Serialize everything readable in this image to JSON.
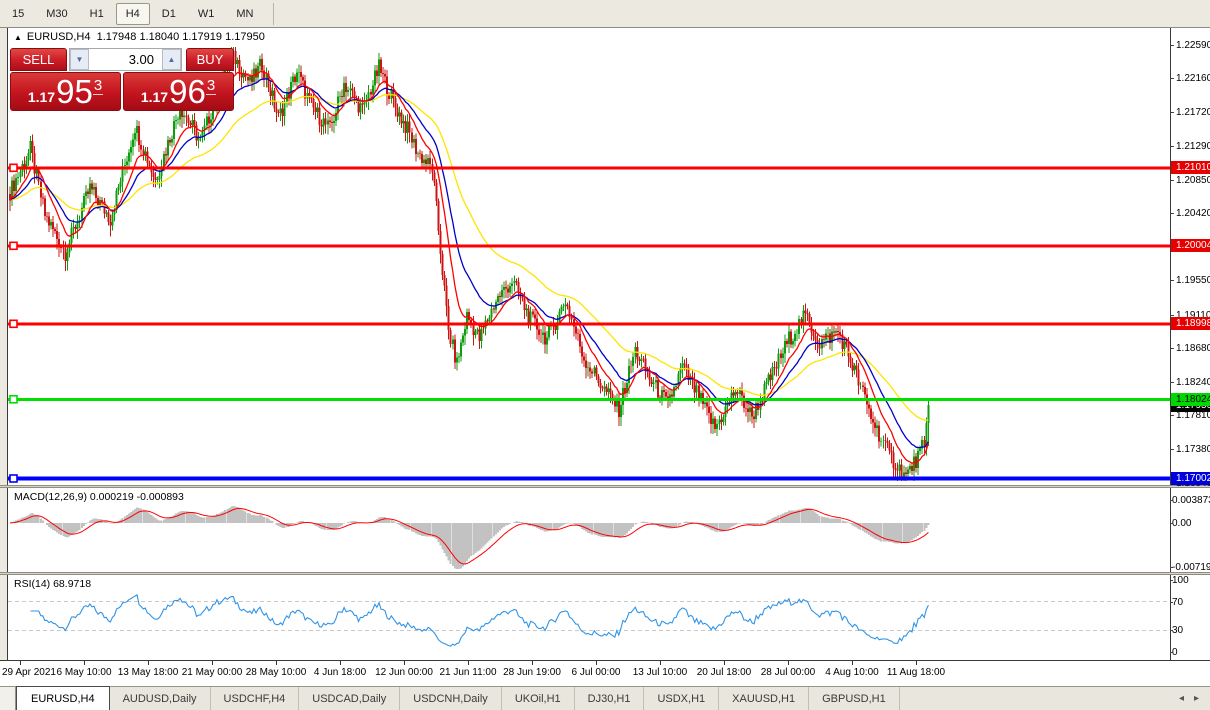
{
  "toolbar": {
    "timeframes": [
      {
        "label": "15",
        "active": false
      },
      {
        "label": "M30",
        "active": false
      },
      {
        "label": "H1",
        "active": false
      },
      {
        "label": "H4",
        "active": true
      },
      {
        "label": "D1",
        "active": false
      },
      {
        "label": "W1",
        "active": false
      },
      {
        "label": "MN",
        "active": false
      }
    ]
  },
  "chart": {
    "title": "EURUSD,H4",
    "ohlc_text": "1.17948 1.18040 1.17919 1.17950",
    "trade_panel": {
      "sell_label": "SELL",
      "buy_label": "BUY",
      "volume": "3.00",
      "down_arrow": "▼",
      "up_arrow": "▲",
      "sell_price_prefix": "1.17",
      "sell_price_big": "95",
      "sell_price_sup": "3",
      "buy_price_prefix": "1.17",
      "buy_price_big": "96",
      "buy_price_sup": "3"
    }
  },
  "chart_data": {
    "type": "candlestick",
    "symbol": "EURUSD",
    "timeframe": "H4",
    "ohlc": {
      "open": "1.17948",
      "high": "1.18040",
      "low": "1.17919",
      "close": "1.17950"
    },
    "candle_count": 449,
    "price_path": [
      [
        0,
        1.207
      ],
      [
        10,
        1.2125
      ],
      [
        17,
        1.204
      ],
      [
        27,
        1.1992
      ],
      [
        39,
        1.2075
      ],
      [
        49,
        1.2035
      ],
      [
        61,
        1.2155
      ],
      [
        71,
        1.2085
      ],
      [
        83,
        1.218
      ],
      [
        93,
        1.2135
      ],
      [
        108,
        1.225
      ],
      [
        117,
        1.221
      ],
      [
        123,
        1.2235
      ],
      [
        131,
        1.2165
      ],
      [
        140,
        1.2225
      ],
      [
        147,
        1.218
      ],
      [
        156,
        1.215
      ],
      [
        163,
        1.221
      ],
      [
        172,
        1.2175
      ],
      [
        180,
        1.223
      ],
      [
        188,
        1.218
      ],
      [
        194,
        1.215
      ],
      [
        199,
        1.212
      ],
      [
        206,
        1.21
      ],
      [
        214,
        1.189
      ],
      [
        218,
        1.1848
      ],
      [
        223,
        1.191
      ],
      [
        229,
        1.188
      ],
      [
        237,
        1.193
      ],
      [
        245,
        1.1955
      ],
      [
        254,
        1.1905
      ],
      [
        262,
        1.188
      ],
      [
        271,
        1.193
      ],
      [
        280,
        1.1855
      ],
      [
        290,
        1.1815
      ],
      [
        297,
        1.179
      ],
      [
        305,
        1.1865
      ],
      [
        313,
        1.1825
      ],
      [
        321,
        1.1795
      ],
      [
        328,
        1.1845
      ],
      [
        337,
        1.18
      ],
      [
        344,
        1.1765
      ],
      [
        354,
        1.1815
      ],
      [
        362,
        1.178
      ],
      [
        371,
        1.183
      ],
      [
        380,
        1.188
      ],
      [
        388,
        1.191
      ],
      [
        395,
        1.1875
      ],
      [
        404,
        1.189
      ],
      [
        412,
        1.184
      ],
      [
        420,
        1.178
      ],
      [
        429,
        1.173
      ],
      [
        437,
        1.1703
      ],
      [
        443,
        1.1728
      ],
      [
        446,
        1.1745
      ],
      [
        448,
        1.1795
      ]
    ],
    "candle_up_color": "#0f9d0f",
    "candle_down_color": "#cc1414",
    "price_axis_ticks": [
      "1.22590",
      "1.22160",
      "1.21720",
      "1.21290",
      "1.20850",
      "1.20420",
      "1.19550",
      "1.19110",
      "1.18680",
      "1.18240",
      "1.17810",
      "1.17380",
      "1.16940"
    ],
    "price_labels": [
      {
        "text": "1.21010",
        "bg": "#e60000",
        "fg": "#ffffff",
        "z": 3
      },
      {
        "text": "1.20004",
        "bg": "#e60000",
        "fg": "#ffffff",
        "z": 3
      },
      {
        "text": "1.18998",
        "bg": "#e60000",
        "fg": "#ffffff",
        "z": 3
      },
      {
        "text": "1.17950",
        "bg": "#000000",
        "fg": "#ffffff",
        "z": 4
      },
      {
        "text": "1.18024",
        "bg": "#00d800",
        "fg": "#000000",
        "z": 5
      },
      {
        "text": "1.17002",
        "bg": "#0000dd",
        "fg": "#ffffff",
        "z": 5
      }
    ],
    "h_lines": [
      {
        "value": 1.2101,
        "color": "#ff0000",
        "w": 3
      },
      {
        "value": 1.20004,
        "color": "#ff0000",
        "w": 3
      },
      {
        "value": 1.18998,
        "color": "#ff0000",
        "w": 3
      },
      {
        "value": 1.18024,
        "color": "#00e000",
        "w": 3
      },
      {
        "value": 1.17002,
        "color": "#0000ff",
        "w": 4
      }
    ],
    "ma_lines": [
      {
        "name": "fast",
        "color": "#ff0000",
        "period": 12
      },
      {
        "name": "medium",
        "color": "#0000c8",
        "period": 24
      },
      {
        "name": "slow",
        "color": "#ffe400",
        "period": 55
      }
    ],
    "time_axis_ticks": [
      "29 Apr 2021",
      "6 May 10:00",
      "13 May 18:00",
      "21 May 00:00",
      "28 May 10:00",
      "4 Jun 18:00",
      "12 Jun 00:00",
      "21 Jun 11:00",
      "28 Jun 19:00",
      "6 Jul 00:00",
      "13 Jul 10:00",
      "20 Jul 18:00",
      "28 Jul 00:00",
      "4 Aug 10:00",
      "11 Aug 18:00"
    ],
    "macd": {
      "label": "MACD(12,26,9) 0.000219 -0.000893",
      "main_value": "0.000219",
      "signal_value": "-0.000893",
      "axis_labels": [
        "0.003873",
        "0.00",
        "-0.007195"
      ],
      "hist_color": "#c2c2c2",
      "signal_color": "#ff0000"
    },
    "rsi": {
      "label": "RSI(14) 68.9718",
      "value": "68.9718",
      "axis_labels": [
        "100",
        "70",
        "30",
        "0"
      ],
      "levels": [
        70,
        30
      ],
      "line_color": "#3094e8",
      "level_color": "#c8c8c8"
    }
  },
  "tabs": {
    "items": [
      {
        "label": "EURUSD,H4",
        "active": true
      },
      {
        "label": "AUDUSD,Daily",
        "active": false
      },
      {
        "label": "USDCHF,H4",
        "active": false
      },
      {
        "label": "USDCAD,Daily",
        "active": false
      },
      {
        "label": "USDCNH,Daily",
        "active": false
      },
      {
        "label": "UKOil,H1",
        "active": false
      },
      {
        "label": "DJ30,H1",
        "active": false
      },
      {
        "label": "USDX,H1",
        "active": false
      },
      {
        "label": "XAUUSD,H1",
        "active": false
      },
      {
        "label": "GBPUSD,H1",
        "active": false
      }
    ],
    "left_arrow": "◂",
    "right_arrow": "▸"
  }
}
